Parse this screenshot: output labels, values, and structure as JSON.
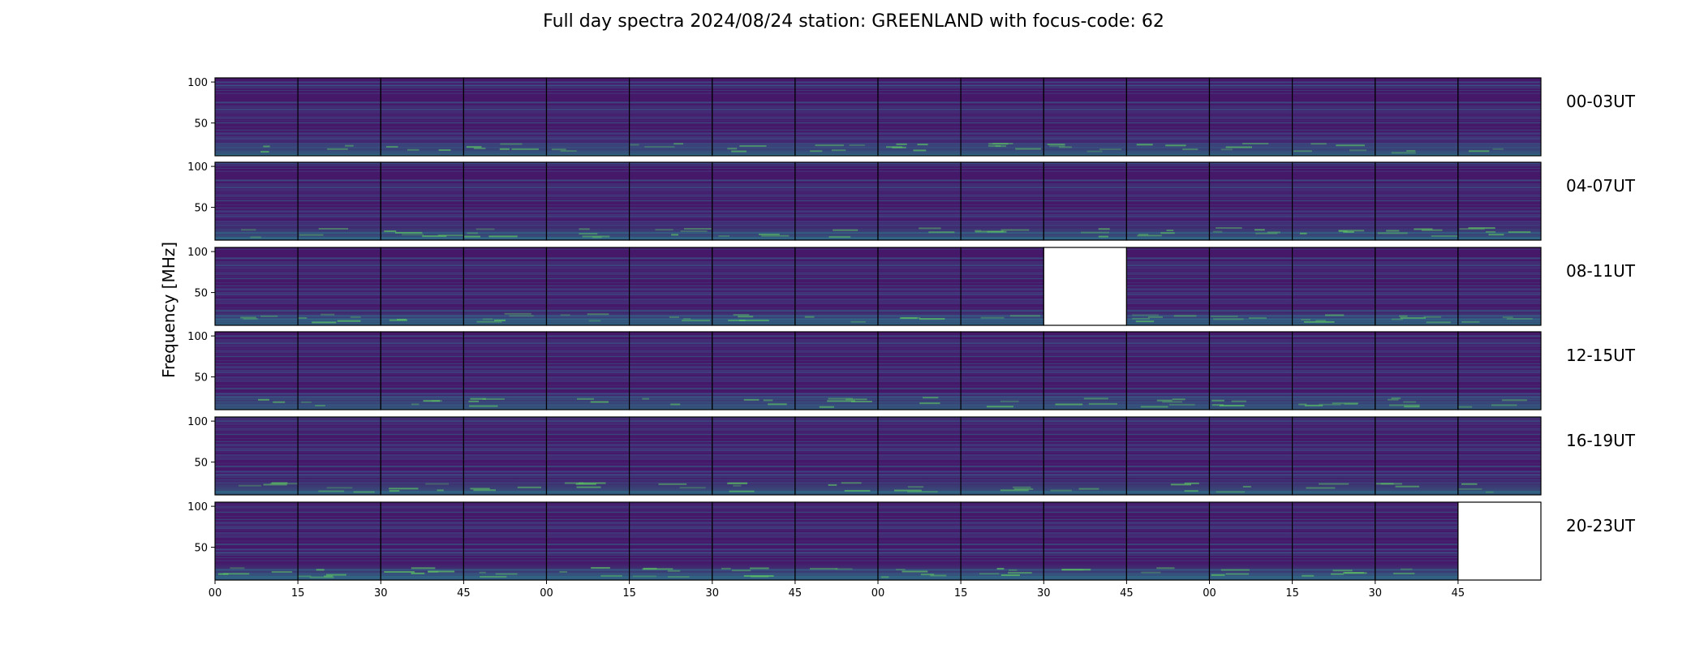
{
  "chart_data": {
    "type": "heatmap",
    "title": "Full day spectra 2024/08/24 station: GREENLAND with focus-code: 62",
    "ylabel": "Frequency [MHz]",
    "xlabel": "",
    "ylim": [
      10,
      105
    ],
    "y_ticks": [
      "50",
      "100"
    ],
    "x_ticks": [
      "00",
      "15",
      "30",
      "45",
      "00",
      "15",
      "30",
      "45",
      "00",
      "15",
      "30",
      "45",
      "00",
      "15",
      "30",
      "45"
    ],
    "colormap": "viridis",
    "colors": {
      "background": "#46186a",
      "low": "#440154",
      "mid": "#21918c",
      "high": "#5ec962",
      "peak": "#fde725",
      "missing": "#ffffff"
    },
    "columns_per_row": 16,
    "minutes_per_panel": 15,
    "rows": [
      {
        "label": "00-03UT",
        "missing_panels": []
      },
      {
        "label": "04-07UT",
        "missing_panels": []
      },
      {
        "label": "08-11UT",
        "missing_panels": [
          10
        ]
      },
      {
        "label": "12-15UT",
        "missing_panels": []
      },
      {
        "label": "16-19UT",
        "missing_panels": []
      },
      {
        "label": "20-23UT",
        "missing_panels": [
          15
        ]
      }
    ]
  }
}
